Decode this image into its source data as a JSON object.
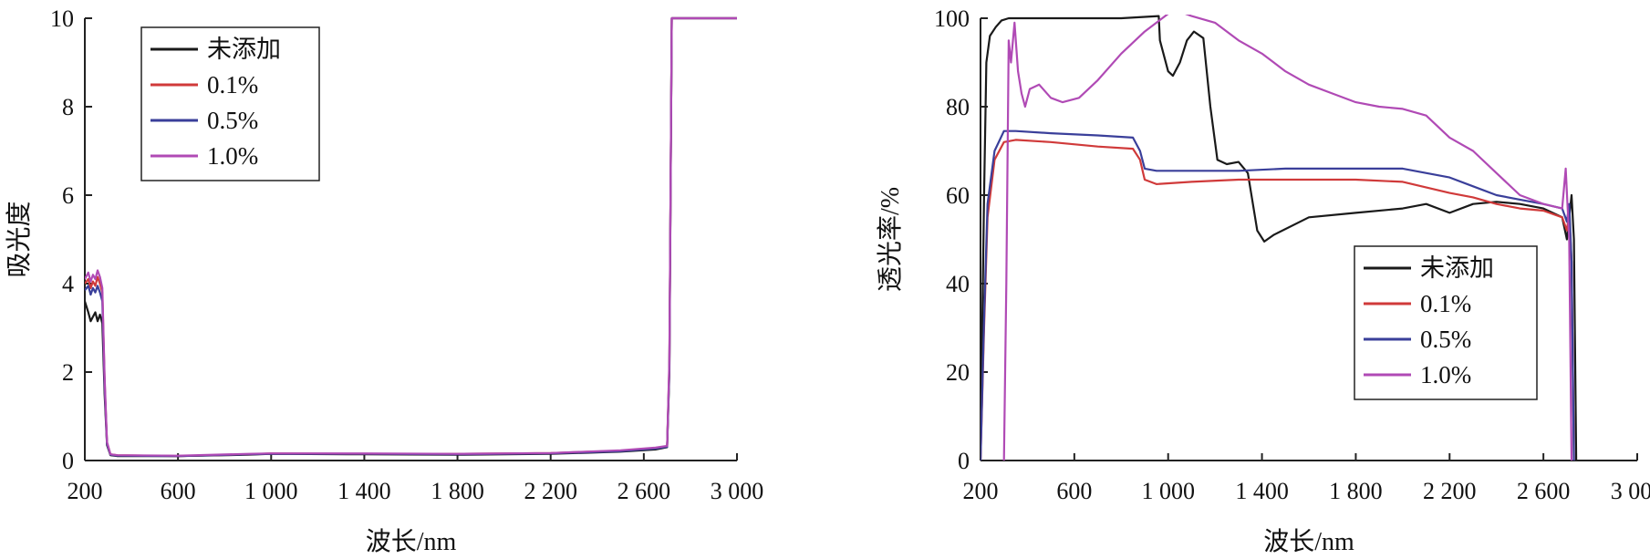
{
  "chart_data": [
    {
      "type": "line",
      "xlabel": "波长/nm",
      "ylabel": "吸光度",
      "xlim": [
        200,
        3000
      ],
      "ylim": [
        0,
        10
      ],
      "xticks": [
        200,
        600,
        1000,
        1400,
        1800,
        2200,
        2600,
        3000
      ],
      "xtick_labels": [
        "200",
        "600",
        "1 000",
        "1 400",
        "1 800",
        "2 200",
        "2 600",
        "3 000"
      ],
      "yticks": [
        0,
        2,
        4,
        6,
        8,
        10
      ],
      "ytick_labels": [
        "0",
        "2",
        "4",
        "6",
        "8",
        "10"
      ],
      "grid": false,
      "legend_position": "top-left",
      "series": [
        {
          "name": "未添加",
          "color": "#1a1a1a",
          "points": [
            [
              200,
              3.6
            ],
            [
              215,
              3.35
            ],
            [
              225,
              3.15
            ],
            [
              235,
              3.25
            ],
            [
              245,
              3.35
            ],
            [
              255,
              3.15
            ],
            [
              265,
              3.3
            ],
            [
              275,
              3.1
            ],
            [
              285,
              1.5
            ],
            [
              295,
              0.35
            ],
            [
              310,
              0.12
            ],
            [
              340,
              0.1
            ],
            [
              600,
              0.1
            ],
            [
              900,
              0.13
            ],
            [
              1000,
              0.15
            ],
            [
              1400,
              0.14
            ],
            [
              1800,
              0.13
            ],
            [
              2200,
              0.15
            ],
            [
              2500,
              0.2
            ],
            [
              2650,
              0.25
            ],
            [
              2700,
              0.3
            ],
            [
              2710,
              2.0
            ],
            [
              2720,
              10.0
            ],
            [
              3000,
              10.0
            ]
          ]
        },
        {
          "name": "0.1%",
          "color": "#d03a3a",
          "points": [
            [
              200,
              4.0
            ],
            [
              215,
              4.1
            ],
            [
              225,
              3.9
            ],
            [
              235,
              4.05
            ],
            [
              245,
              3.95
            ],
            [
              255,
              4.15
            ],
            [
              265,
              4.0
            ],
            [
              275,
              3.8
            ],
            [
              285,
              1.8
            ],
            [
              295,
              0.4
            ],
            [
              310,
              0.14
            ],
            [
              340,
              0.12
            ],
            [
              600,
              0.1
            ],
            [
              900,
              0.14
            ],
            [
              1000,
              0.16
            ],
            [
              1400,
              0.15
            ],
            [
              1800,
              0.15
            ],
            [
              2200,
              0.17
            ],
            [
              2500,
              0.22
            ],
            [
              2650,
              0.28
            ],
            [
              2700,
              0.32
            ],
            [
              2710,
              2.2
            ],
            [
              2720,
              10.0
            ],
            [
              3000,
              10.0
            ]
          ]
        },
        {
          "name": "0.5%",
          "color": "#3a3f9a",
          "points": [
            [
              200,
              3.85
            ],
            [
              215,
              3.95
            ],
            [
              225,
              3.75
            ],
            [
              235,
              3.9
            ],
            [
              245,
              3.8
            ],
            [
              255,
              3.95
            ],
            [
              265,
              3.8
            ],
            [
              275,
              3.6
            ],
            [
              285,
              1.7
            ],
            [
              295,
              0.38
            ],
            [
              310,
              0.13
            ],
            [
              340,
              0.11
            ],
            [
              600,
              0.1
            ],
            [
              900,
              0.14
            ],
            [
              1000,
              0.15
            ],
            [
              1400,
              0.15
            ],
            [
              1800,
              0.14
            ],
            [
              2200,
              0.16
            ],
            [
              2500,
              0.21
            ],
            [
              2650,
              0.27
            ],
            [
              2700,
              0.31
            ],
            [
              2710,
              2.1
            ],
            [
              2720,
              10.0
            ],
            [
              3000,
              10.0
            ]
          ]
        },
        {
          "name": "1.0%",
          "color": "#b04ab5",
          "points": [
            [
              200,
              4.1
            ],
            [
              215,
              4.25
            ],
            [
              225,
              4.05
            ],
            [
              235,
              4.2
            ],
            [
              245,
              4.1
            ],
            [
              255,
              4.3
            ],
            [
              265,
              4.15
            ],
            [
              275,
              3.9
            ],
            [
              285,
              1.9
            ],
            [
              295,
              0.42
            ],
            [
              310,
              0.14
            ],
            [
              340,
              0.12
            ],
            [
              600,
              0.11
            ],
            [
              900,
              0.15
            ],
            [
              1000,
              0.16
            ],
            [
              1400,
              0.16
            ],
            [
              1800,
              0.15
            ],
            [
              2200,
              0.17
            ],
            [
              2500,
              0.23
            ],
            [
              2650,
              0.29
            ],
            [
              2700,
              0.33
            ],
            [
              2710,
              2.3
            ],
            [
              2720,
              10.0
            ],
            [
              3000,
              10.0
            ]
          ]
        }
      ]
    },
    {
      "type": "line",
      "xlabel": "波长/nm",
      "ylabel": "透光率/%",
      "xlim": [
        200,
        3000
      ],
      "ylim": [
        0,
        100
      ],
      "xticks": [
        200,
        600,
        1000,
        1400,
        1800,
        2200,
        2600,
        3000
      ],
      "xtick_labels": [
        "200",
        "600",
        "1 000",
        "1 400",
        "1 800",
        "2 200",
        "2 600",
        "3 000"
      ],
      "yticks": [
        0,
        20,
        40,
        60,
        80,
        100
      ],
      "ytick_labels": [
        "0",
        "20",
        "40",
        "60",
        "80",
        "100"
      ],
      "grid": false,
      "legend_position": "center-right",
      "series": [
        {
          "name": "未添加",
          "color": "#1a1a1a",
          "points": [
            [
              200,
              0
            ],
            [
              215,
              60
            ],
            [
              225,
              90
            ],
            [
              240,
              96
            ],
            [
              265,
              98
            ],
            [
              290,
              99.5
            ],
            [
              320,
              100
            ],
            [
              400,
              100
            ],
            [
              600,
              100
            ],
            [
              800,
              100
            ],
            [
              960,
              100.5
            ],
            [
              965,
              95
            ],
            [
              1000,
              88
            ],
            [
              1020,
              87
            ],
            [
              1050,
              90
            ],
            [
              1080,
              95
            ],
            [
              1110,
              97
            ],
            [
              1150,
              95.5
            ],
            [
              1180,
              80
            ],
            [
              1210,
              68
            ],
            [
              1250,
              67
            ],
            [
              1300,
              67.5
            ],
            [
              1340,
              65
            ],
            [
              1380,
              52
            ],
            [
              1410,
              49.5
            ],
            [
              1450,
              51
            ],
            [
              1600,
              55
            ],
            [
              1800,
              56
            ],
            [
              2000,
              57
            ],
            [
              2100,
              58
            ],
            [
              2200,
              56
            ],
            [
              2300,
              58
            ],
            [
              2400,
              58.5
            ],
            [
              2500,
              58
            ],
            [
              2600,
              57
            ],
            [
              2680,
              55
            ],
            [
              2700,
              50
            ],
            [
              2720,
              60
            ],
            [
              2730,
              50
            ],
            [
              2740,
              0
            ]
          ]
        },
        {
          "name": "0.1%",
          "color": "#d03a3a",
          "points": [
            [
              200,
              0
            ],
            [
              215,
              30
            ],
            [
              230,
              55
            ],
            [
              260,
              68
            ],
            [
              300,
              72
            ],
            [
              350,
              72.5
            ],
            [
              500,
              72
            ],
            [
              700,
              71
            ],
            [
              850,
              70.5
            ],
            [
              880,
              68
            ],
            [
              900,
              63.5
            ],
            [
              950,
              62.5
            ],
            [
              1100,
              63
            ],
            [
              1300,
              63.5
            ],
            [
              1500,
              63.5
            ],
            [
              1800,
              63.5
            ],
            [
              2000,
              63
            ],
            [
              2200,
              60.5
            ],
            [
              2300,
              59.5
            ],
            [
              2400,
              58
            ],
            [
              2500,
              57
            ],
            [
              2600,
              56.5
            ],
            [
              2680,
              55
            ],
            [
              2700,
              52
            ],
            [
              2710,
              56
            ],
            [
              2720,
              45
            ],
            [
              2730,
              0
            ]
          ]
        },
        {
          "name": "0.5%",
          "color": "#3a3f9a",
          "points": [
            [
              200,
              0
            ],
            [
              215,
              32
            ],
            [
              230,
              58
            ],
            [
              260,
              70
            ],
            [
              300,
              74.5
            ],
            [
              350,
              74.5
            ],
            [
              500,
              74
            ],
            [
              700,
              73.5
            ],
            [
              850,
              73
            ],
            [
              880,
              70
            ],
            [
              900,
              66
            ],
            [
              950,
              65.5
            ],
            [
              1100,
              65.5
            ],
            [
              1300,
              65.5
            ],
            [
              1500,
              66
            ],
            [
              1800,
              66
            ],
            [
              2000,
              66
            ],
            [
              2200,
              64
            ],
            [
              2300,
              62
            ],
            [
              2400,
              60
            ],
            [
              2500,
              59
            ],
            [
              2600,
              58
            ],
            [
              2680,
              57
            ],
            [
              2700,
              54
            ],
            [
              2710,
              58
            ],
            [
              2720,
              45
            ],
            [
              2730,
              0
            ]
          ]
        },
        {
          "name": "1.0%",
          "color": "#b04ab5",
          "points": [
            [
              300,
              0
            ],
            [
              310,
              40
            ],
            [
              320,
              95
            ],
            [
              330,
              90
            ],
            [
              345,
              99
            ],
            [
              360,
              88
            ],
            [
              375,
              83
            ],
            [
              390,
              80
            ],
            [
              410,
              84
            ],
            [
              450,
              85
            ],
            [
              500,
              82
            ],
            [
              550,
              81
            ],
            [
              620,
              82
            ],
            [
              700,
              86
            ],
            [
              800,
              92
            ],
            [
              900,
              97
            ],
            [
              1000,
              101
            ],
            [
              1050,
              101.5
            ],
            [
              1100,
              100.5
            ],
            [
              1200,
              99
            ],
            [
              1300,
              95
            ],
            [
              1400,
              92
            ],
            [
              1500,
              88
            ],
            [
              1600,
              85
            ],
            [
              1700,
              83
            ],
            [
              1800,
              81
            ],
            [
              1900,
              80
            ],
            [
              2000,
              79.5
            ],
            [
              2100,
              78
            ],
            [
              2200,
              73
            ],
            [
              2300,
              70
            ],
            [
              2400,
              65
            ],
            [
              2500,
              60
            ],
            [
              2600,
              58
            ],
            [
              2680,
              57
            ],
            [
              2695,
              66
            ],
            [
              2710,
              50
            ],
            [
              2720,
              0
            ]
          ]
        }
      ]
    }
  ]
}
